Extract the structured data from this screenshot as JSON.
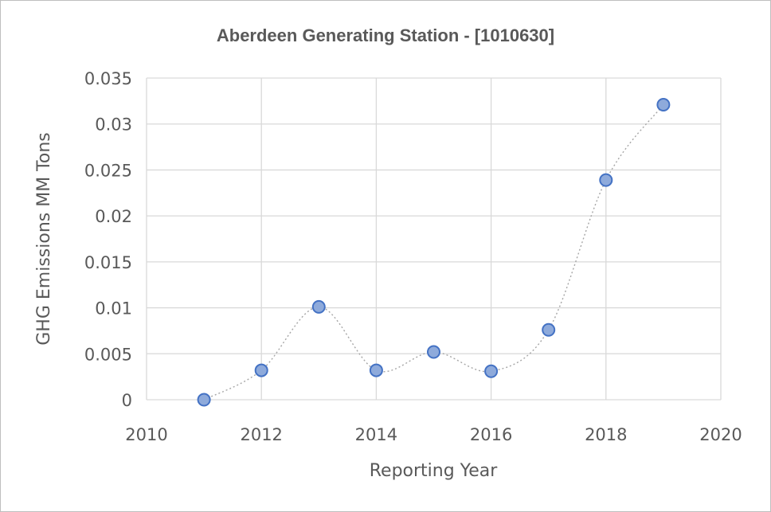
{
  "chart_data": {
    "type": "scatter",
    "title": "Aberdeen Generating Station - [1010630]",
    "xlabel": "Reporting Year",
    "ylabel": "GHG Emissions MM Tons",
    "xlim": [
      2010,
      2020
    ],
    "ylim": [
      0,
      0.035
    ],
    "x_ticks": [
      "2010",
      "2012",
      "2014",
      "2016",
      "2018",
      "2020"
    ],
    "y_ticks": [
      "0",
      "0.005",
      "0.01",
      "0.015",
      "0.02",
      "0.025",
      "0.03",
      "0.035"
    ],
    "grid": true,
    "smooth_line": true,
    "x": [
      2011,
      2012,
      2013,
      2014,
      2015,
      2016,
      2017,
      2018,
      2019
    ],
    "y": [
      0.0,
      0.0032,
      0.0101,
      0.0032,
      0.0052,
      0.0031,
      0.0076,
      0.0239,
      0.0321
    ],
    "colors": {
      "marker_fill": "#8eaadb",
      "marker_stroke": "#4472c4",
      "line": "#a6a6a6",
      "grid": "#d9d9d9"
    }
  }
}
